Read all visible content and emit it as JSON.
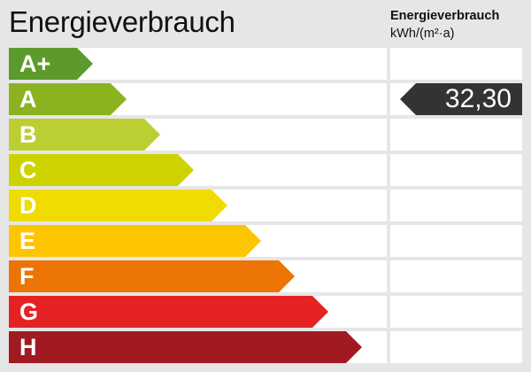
{
  "title": "Energieverbrauch",
  "unit": {
    "line1": "Energieverbrauch",
    "line2": "kWh/(m²·a)"
  },
  "classes": [
    {
      "label": "A+",
      "color": "#5c9a2c"
    },
    {
      "label": "A",
      "color": "#8bb31f"
    },
    {
      "label": "B",
      "color": "#bbcf33"
    },
    {
      "label": "C",
      "color": "#cdd300"
    },
    {
      "label": "D",
      "color": "#f0dc00"
    },
    {
      "label": "E",
      "color": "#fdc500"
    },
    {
      "label": "F",
      "color": "#ec7404"
    },
    {
      "label": "G",
      "color": "#e42224"
    },
    {
      "label": "H",
      "color": "#a21a21"
    }
  ],
  "value": {
    "text": "32,30",
    "class": "A",
    "color": "#333333"
  }
}
